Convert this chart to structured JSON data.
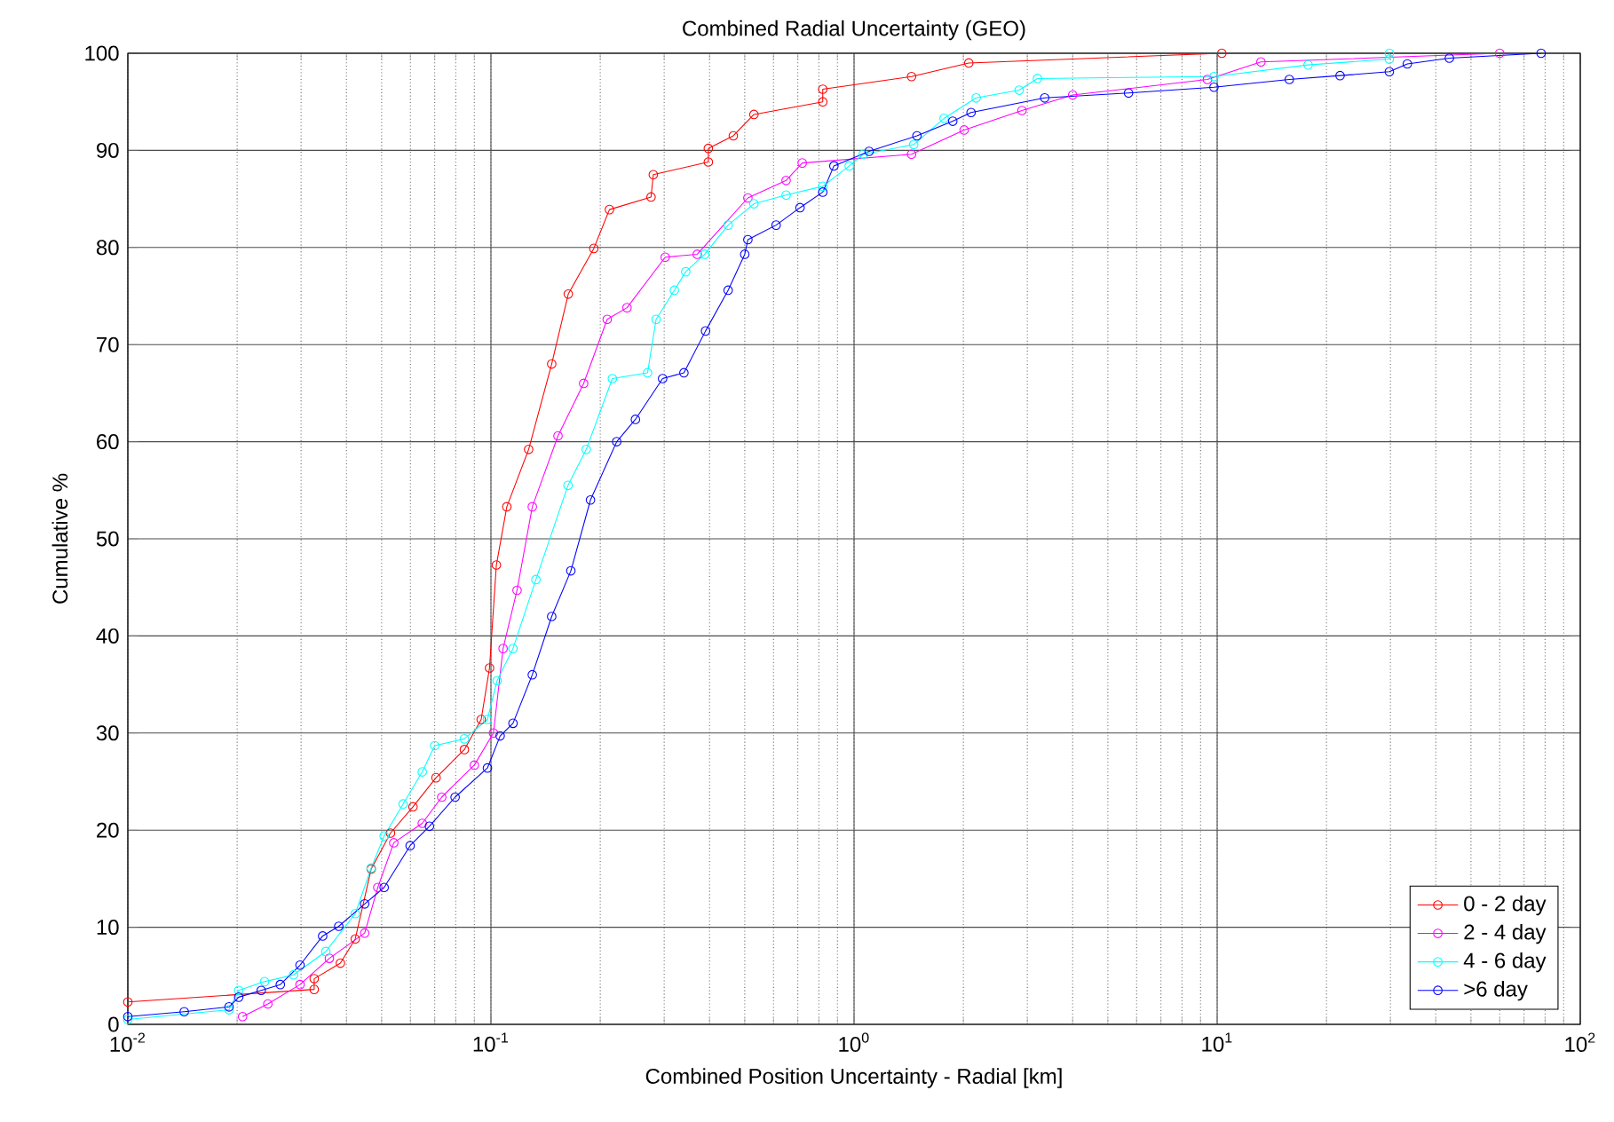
{
  "chart_data": {
    "type": "line",
    "title": "Combined Radial Uncertainty (GEO)",
    "xlabel": "Combined Position Uncertainty - Radial [km]",
    "ylabel": "Cumulative %",
    "log": "x",
    "xlim": [
      0.01,
      100
    ],
    "ylim": [
      0,
      100
    ],
    "xticks": [
      {
        "value": 0.01,
        "label": "10$^{-2}$"
      },
      {
        "value": 0.1,
        "label": "10$^{-1}$"
      },
      {
        "value": 1,
        "label": "10$^{0}$"
      },
      {
        "value": 10,
        "label": "10$^{1}$"
      },
      {
        "value": 100,
        "label": "10$^{2}$"
      }
    ],
    "yticks": [
      0,
      10,
      20,
      30,
      40,
      50,
      60,
      70,
      80,
      90,
      100
    ],
    "grid": true,
    "legend": "bottom right",
    "marker": "circle",
    "line_style": "solid",
    "series": [
      {
        "name": "0 - 2 day",
        "color": "#ff0000",
        "x": [
          0.01,
          0.0326,
          0.0326,
          0.0385,
          0.0423,
          0.0468,
          0.0529,
          0.061,
          0.0706,
          0.0845,
          0.094,
          0.0991,
          0.1035,
          0.1106,
          0.127,
          0.147,
          0.1633,
          0.192,
          0.212,
          0.276,
          0.28,
          0.397,
          0.397,
          0.465,
          0.53,
          0.82,
          0.82,
          1.44,
          2.07,
          10.3
        ],
        "values": [
          2.3,
          3.6,
          4.7,
          6.3,
          8.8,
          16,
          19.7,
          22.4,
          25.4,
          28.3,
          31.4,
          36.7,
          47.3,
          53.3,
          59.2,
          68,
          75.2,
          79.9,
          83.9,
          85.2,
          87.5,
          88.8,
          90.2,
          91.5,
          93.7,
          95,
          96.3,
          97.6,
          99,
          100
        ]
      },
      {
        "name": "2 - 4 day",
        "color": "#ff00ff",
        "x": [
          0.0207,
          0.0243,
          0.0298,
          0.0359,
          0.0449,
          0.0488,
          0.054,
          0.0647,
          0.0732,
          0.09,
          0.1016,
          0.108,
          0.118,
          0.13,
          0.153,
          0.18,
          0.209,
          0.237,
          0.302,
          0.37,
          0.51,
          0.65,
          0.72,
          1.44,
          2.01,
          2.9,
          4.0,
          9.4,
          13.2,
          60
        ],
        "values": [
          0.8,
          2.1,
          4.1,
          6.8,
          9.4,
          14.1,
          18.7,
          20.7,
          23.4,
          26.7,
          30,
          38.7,
          44.7,
          53.3,
          60.6,
          66,
          72.6,
          73.8,
          79,
          79.3,
          85.1,
          86.9,
          88.7,
          89.6,
          92.1,
          94.1,
          95.7,
          97.3,
          99.1,
          100
        ]
      },
      {
        "name": "4 - 6 day",
        "color": "#00ffff",
        "x": [
          0.01,
          0.019,
          0.0202,
          0.0238,
          0.0286,
          0.0351,
          0.0423,
          0.0468,
          0.0508,
          0.0573,
          0.0647,
          0.07,
          0.0845,
          0.0978,
          0.104,
          0.115,
          0.133,
          0.163,
          0.183,
          0.216,
          0.27,
          0.285,
          0.32,
          0.344,
          0.388,
          0.45,
          0.53,
          0.65,
          0.82,
          0.97,
          1.06,
          1.46,
          1.77,
          2.17,
          2.85,
          3.2,
          9.8,
          17.8,
          29.8,
          29.8
        ],
        "values": [
          0.5,
          1.5,
          3.5,
          4.4,
          5.1,
          7.5,
          11.4,
          16.1,
          19.4,
          22.7,
          26,
          28.7,
          29.4,
          31.4,
          35.4,
          38.7,
          45.8,
          55.5,
          59.2,
          66.5,
          67.1,
          72.6,
          75.6,
          77.5,
          79.3,
          82.3,
          84.5,
          85.4,
          86.3,
          88.4,
          89.6,
          90.6,
          93.3,
          95.4,
          96.2,
          97.4,
          97.6,
          98.8,
          99.4,
          100
        ]
      },
      {
        "name": ">6 day",
        "color": "#0000ff",
        "x": [
          0.01,
          0.0143,
          0.019,
          0.0202,
          0.0233,
          0.0263,
          0.0298,
          0.0344,
          0.0381,
          0.0449,
          0.0508,
          0.0599,
          0.0677,
          0.0797,
          0.0978,
          0.106,
          0.115,
          0.13,
          0.147,
          0.166,
          0.188,
          0.222,
          0.25,
          0.297,
          0.34,
          0.39,
          0.45,
          0.5,
          0.51,
          0.61,
          0.71,
          0.82,
          0.88,
          1.1,
          1.49,
          1.87,
          2.1,
          3.35,
          5.7,
          9.8,
          15.8,
          21.8,
          29.8,
          33.4,
          43.6,
          78
        ],
        "values": [
          0.8,
          1.3,
          1.8,
          2.8,
          3.5,
          4.1,
          6.1,
          9.1,
          10.1,
          12.4,
          14.1,
          18.4,
          20.4,
          23.4,
          26.4,
          29.7,
          31,
          36,
          42,
          46.7,
          54,
          60,
          62.3,
          66.5,
          67.1,
          71.4,
          75.6,
          79.3,
          80.8,
          82.3,
          84.1,
          85.7,
          88.4,
          89.9,
          91.5,
          93,
          93.9,
          95.4,
          95.9,
          96.5,
          97.3,
          97.7,
          98.1,
          98.9,
          99.5,
          100
        ]
      }
    ]
  }
}
